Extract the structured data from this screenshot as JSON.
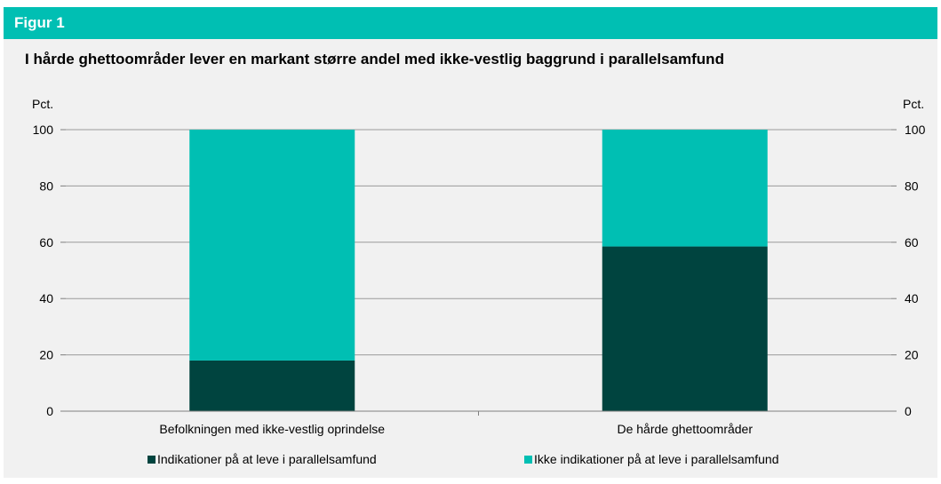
{
  "header": {
    "label": "Figur 1"
  },
  "chart_data": {
    "type": "bar",
    "stacked": true,
    "title": "I hårde ghettoområder lever en markant større andel med ikke-vestlig baggrund i parallelsamfund",
    "ylabel_left": "Pct.",
    "ylabel_right": "Pct.",
    "ylim": [
      0,
      100
    ],
    "yticks": [
      0,
      20,
      40,
      60,
      80,
      100
    ],
    "grid": true,
    "categories": [
      "Befolkningen med ikke-vestlig oprindelse",
      "De hårde ghettoområder"
    ],
    "series": [
      {
        "name": "Indikationer på at leve i parallelsamfund",
        "values": [
          18,
          58.5
        ],
        "color": "#00443f"
      },
      {
        "name": "Ikke indikationer på at leve i parallelsamfund",
        "values": [
          82,
          41.5
        ],
        "color": "#00bfb3"
      }
    ],
    "legend_position": "bottom"
  }
}
